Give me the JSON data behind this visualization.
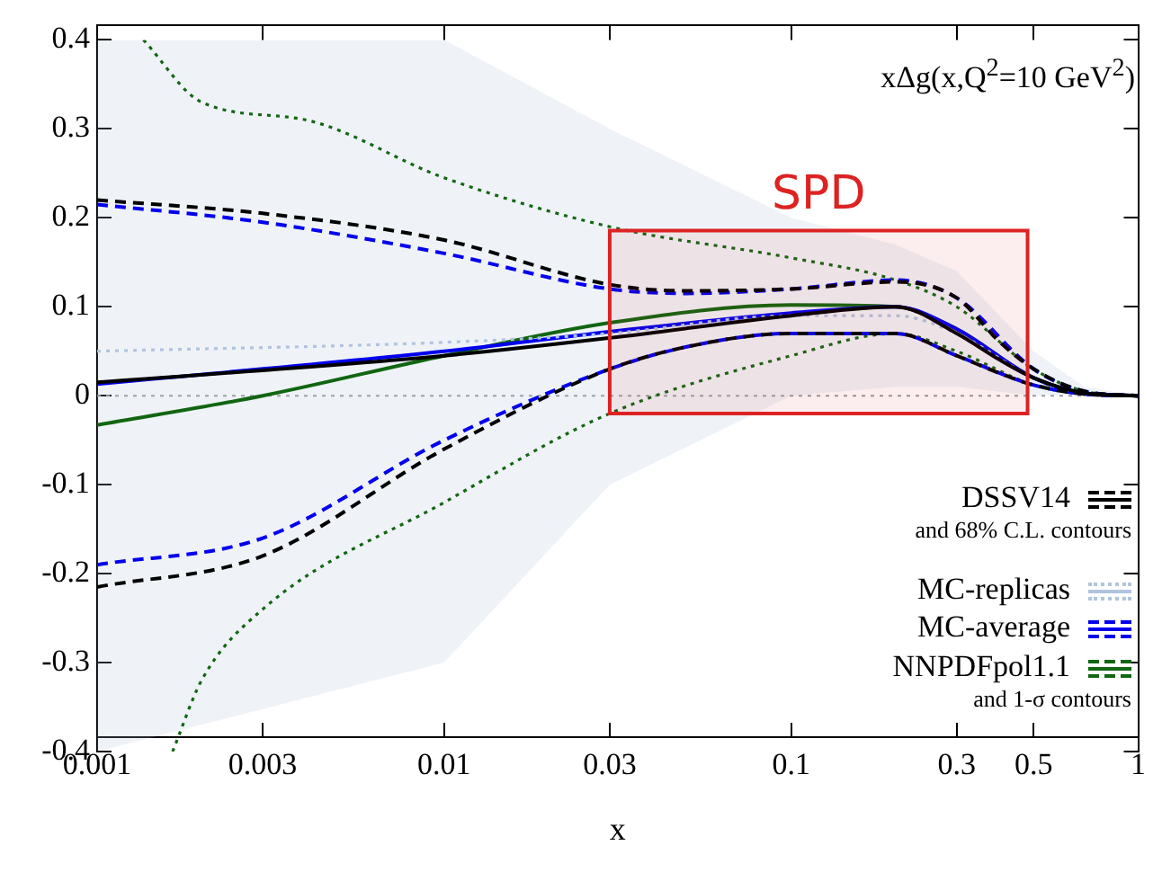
{
  "chart_data": {
    "type": "line",
    "title": "xΔg(x,Q$^{2}$=10 GeV$^{2}$)",
    "xlabel": "x",
    "log": "x",
    "xlim": [
      0.001,
      1
    ],
    "xticks": [
      0.001,
      0.003,
      0.01,
      0.03,
      0.1,
      0.3,
      0.5,
      1
    ],
    "ylim": [
      -0.4,
      0.4
    ],
    "yticks": [
      -0.4,
      -0.3,
      -0.2,
      -0.1,
      0,
      0.1,
      0.2,
      0.3,
      0.4
    ],
    "grid": false,
    "legend": "bottom right",
    "marker": "none",
    "annotations": [
      "and 68% C.L. contours",
      "and 1-σ contours"
    ],
    "bands": [
      {
        "axis": "x",
        "from": 0.03,
        "to": 0.48,
        "label": "SPD",
        "color": "#dd2222"
      }
    ],
    "ref_lines": [
      {
        "axis": "y",
        "value": 0,
        "color": "#999999",
        "line_style": "dotted"
      }
    ],
    "series": [
      {
        "name": "DSSV14",
        "color": "#000000",
        "line_style": "solid",
        "x": [
          0.001,
          0.01,
          0.03,
          0.1,
          0.2,
          0.3,
          0.4,
          0.5,
          0.7,
          1
        ],
        "values": [
          0.015,
          0.045,
          0.065,
          0.09,
          0.1,
          0.07,
          0.04,
          0.02,
          0.003,
          0
        ]
      },
      {
        "color": "#000000",
        "line_style": "dashed",
        "x": [
          0.001,
          0.003,
          0.01,
          0.03,
          0.05,
          0.1,
          0.2,
          0.3,
          0.4,
          0.5,
          0.7,
          1
        ],
        "values": [
          0.22,
          0.205,
          0.175,
          0.125,
          0.118,
          0.12,
          0.128,
          0.11,
          0.06,
          0.03,
          0.005,
          0
        ]
      },
      {
        "color": "#000000",
        "line_style": "dashed",
        "x": [
          0.001,
          0.003,
          0.01,
          0.03,
          0.05,
          0.1,
          0.2,
          0.3,
          0.4,
          0.5,
          0.7,
          1
        ],
        "values": [
          -0.215,
          -0.18,
          -0.06,
          0.03,
          0.055,
          0.07,
          0.07,
          0.045,
          0.025,
          0.012,
          0.002,
          0
        ]
      },
      {
        "name": "MC-replicas",
        "color": "#b0c4de",
        "line_style": "dotted",
        "x": [
          0.001,
          0.01,
          0.03,
          0.1,
          0.2,
          0.3,
          0.5,
          0.7,
          1
        ],
        "values": [
          0.05,
          0.06,
          0.07,
          0.09,
          0.09,
          0.07,
          0.02,
          0.003,
          0
        ],
        "lower": [
          -0.4,
          -0.3,
          -0.1,
          0,
          0.01,
          0.01,
          0,
          0,
          0
        ],
        "upper": [
          0.4,
          0.4,
          0.3,
          0.2,
          0.17,
          0.14,
          0.05,
          0.01,
          0
        ]
      },
      {
        "name": "MC-average",
        "color": "#0000ee",
        "line_style": "solid",
        "x": [
          0.001,
          0.01,
          0.03,
          0.1,
          0.2,
          0.3,
          0.5,
          0.7,
          1
        ],
        "values": [
          0.013,
          0.05,
          0.072,
          0.093,
          0.1,
          0.075,
          0.02,
          0.003,
          0
        ]
      },
      {
        "color": "#0000ee",
        "line_style": "dashed",
        "x": [
          0.001,
          0.003,
          0.01,
          0.03,
          0.05,
          0.1,
          0.2,
          0.3,
          0.5,
          0.7,
          1
        ],
        "values": [
          0.215,
          0.195,
          0.16,
          0.12,
          0.115,
          0.12,
          0.13,
          0.11,
          0.03,
          0.005,
          0
        ]
      },
      {
        "color": "#0000ee",
        "line_style": "dashed",
        "x": [
          0.001,
          0.003,
          0.01,
          0.03,
          0.05,
          0.1,
          0.2,
          0.3,
          0.5,
          0.7,
          1
        ],
        "values": [
          -0.19,
          -0.16,
          -0.05,
          0.03,
          0.055,
          0.07,
          0.07,
          0.045,
          0.012,
          0.002,
          0
        ]
      },
      {
        "name": "NNPDFpol1.1",
        "color": "#116611",
        "line_style": "solid",
        "x": [
          0.001,
          0.003,
          0.01,
          0.03,
          0.1,
          0.2,
          0.3,
          0.5,
          0.7,
          1
        ],
        "values": [
          -0.033,
          0,
          0.045,
          0.082,
          0.102,
          0.1,
          0.075,
          0.02,
          0.003,
          0
        ]
      },
      {
        "color": "#116611",
        "line_style": "dotted",
        "x": [
          0.00136,
          0.002,
          0.004,
          0.01,
          0.03,
          0.1,
          0.2,
          0.3,
          0.5,
          0.7,
          1
        ],
        "values": [
          0.4,
          0.33,
          0.31,
          0.245,
          0.19,
          0.155,
          0.13,
          0.1,
          0.03,
          0.005,
          0
        ]
      },
      {
        "color": "#116611",
        "line_style": "dotted",
        "x": [
          0.00165,
          0.002,
          0.003,
          0.01,
          0.03,
          0.1,
          0.2,
          0.3,
          0.5,
          0.7,
          1
        ],
        "values": [
          -0.4,
          -0.32,
          -0.24,
          -0.12,
          -0.02,
          0.045,
          0.07,
          0.05,
          0.012,
          0.002,
          0
        ]
      }
    ]
  }
}
